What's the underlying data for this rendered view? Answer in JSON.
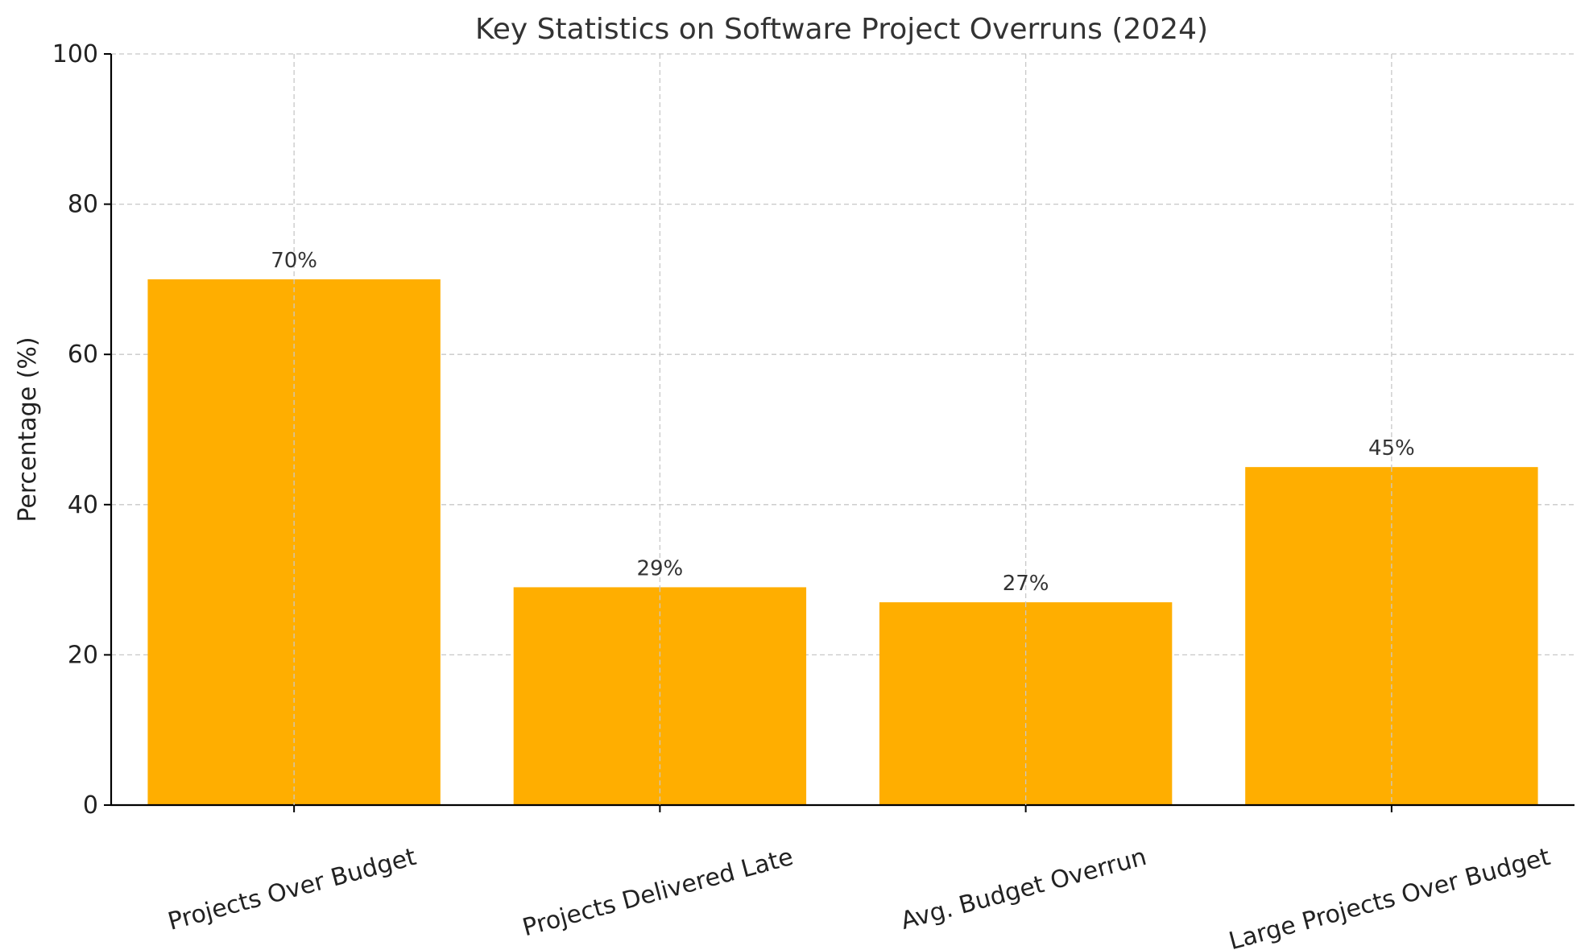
{
  "chart_data": {
    "type": "bar",
    "title": "Key Statistics on Software Project Overruns (2024)",
    "xlabel": "",
    "ylabel": "Percentage (%)",
    "ylim": [
      0,
      100
    ],
    "yticks": [
      0,
      20,
      40,
      60,
      80,
      100
    ],
    "grid": true,
    "categories": [
      "Projects Over Budget",
      "Projects Delivered Late",
      "Avg. Budget Overrun",
      "Large Projects Over Budget"
    ],
    "values": [
      70,
      29,
      27,
      45
    ],
    "data_labels": [
      "70%",
      "29%",
      "27%",
      "45%"
    ],
    "bar_color": "#FFAE00"
  }
}
